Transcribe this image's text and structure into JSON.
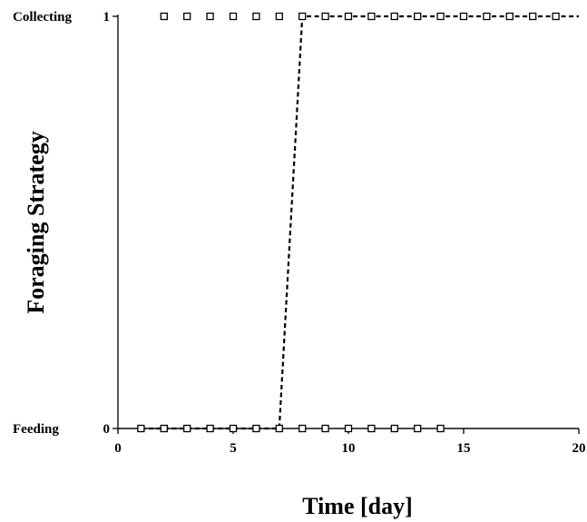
{
  "chart_data": {
    "type": "line",
    "xlabel": "Time [day]",
    "ylabel": "Foraging Strategy",
    "xlim": [
      0,
      20
    ],
    "ylim": [
      0,
      1
    ],
    "x_ticks": [
      "0",
      "5",
      "10",
      "15",
      "20"
    ],
    "y_ticks": [
      "0",
      "1"
    ],
    "y_category_labels": [
      "Feeding",
      "Collecting"
    ],
    "grid": false,
    "series": [
      {
        "style": "points",
        "marker": "open-square",
        "x": [
          2,
          3,
          4,
          5,
          6,
          7,
          8,
          9,
          10,
          11,
          12,
          13,
          14,
          15,
          16,
          17,
          18,
          19
        ],
        "y": [
          1,
          1,
          1,
          1,
          1,
          1,
          1,
          1,
          1,
          1,
          1,
          1,
          1,
          1,
          1,
          1,
          1,
          1
        ]
      },
      {
        "style": "points",
        "marker": "open-square",
        "x": [
          1,
          2,
          3,
          4,
          5,
          6,
          7,
          8,
          9,
          10,
          11,
          12,
          13,
          14
        ],
        "y": [
          0,
          0,
          0,
          0,
          0,
          0,
          0,
          0,
          0,
          0,
          0,
          0,
          0,
          0
        ]
      },
      {
        "style": "solid-line",
        "x": [
          0,
          1,
          20
        ],
        "y": [
          0,
          0,
          0
        ]
      },
      {
        "style": "dashed-line",
        "x": [
          1,
          7,
          8,
          20
        ],
        "y": [
          0,
          0,
          1,
          1
        ]
      }
    ]
  }
}
